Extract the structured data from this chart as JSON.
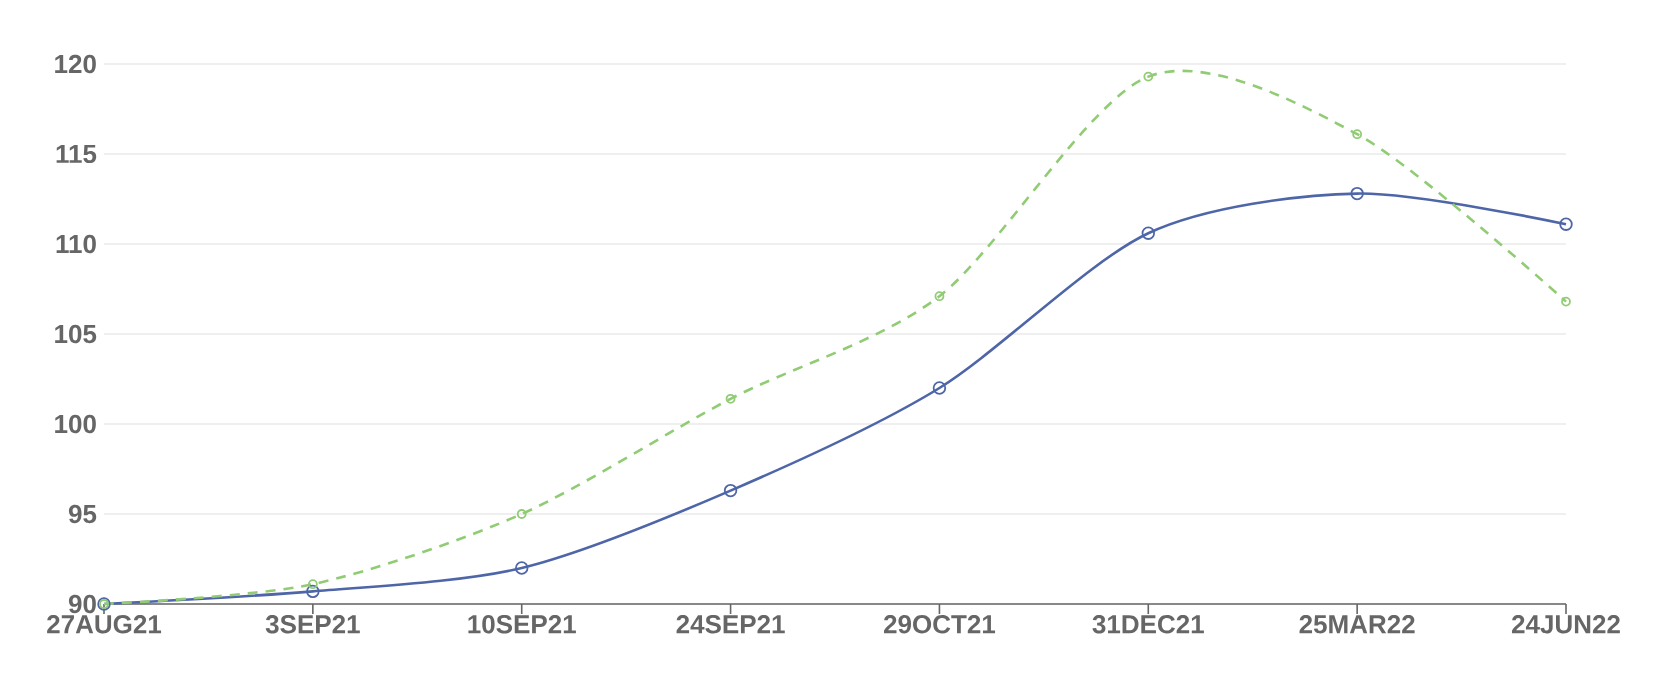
{
  "chart_data": {
    "type": "line",
    "categories": [
      "27AUG21",
      "3SEP21",
      "10SEP21",
      "24SEP21",
      "29OCT21",
      "31DEC21",
      "25MAR22",
      "24JUN22"
    ],
    "series": [
      {
        "color": "#4e66a8",
        "line_style": "solid",
        "values": [
          90,
          90.7,
          92.0,
          96.3,
          102.0,
          110.6,
          112.8,
          111.1
        ]
      },
      {
        "color": "#91cc75",
        "line_style": "dashed",
        "values": [
          90,
          91.1,
          95.0,
          101.4,
          107.1,
          119.3,
          116.1,
          106.8
        ]
      }
    ],
    "ylim": [
      90,
      120
    ],
    "yticks": [
      90,
      95,
      100,
      105,
      110,
      115,
      120
    ],
    "grid": "y",
    "marker": "circle"
  }
}
